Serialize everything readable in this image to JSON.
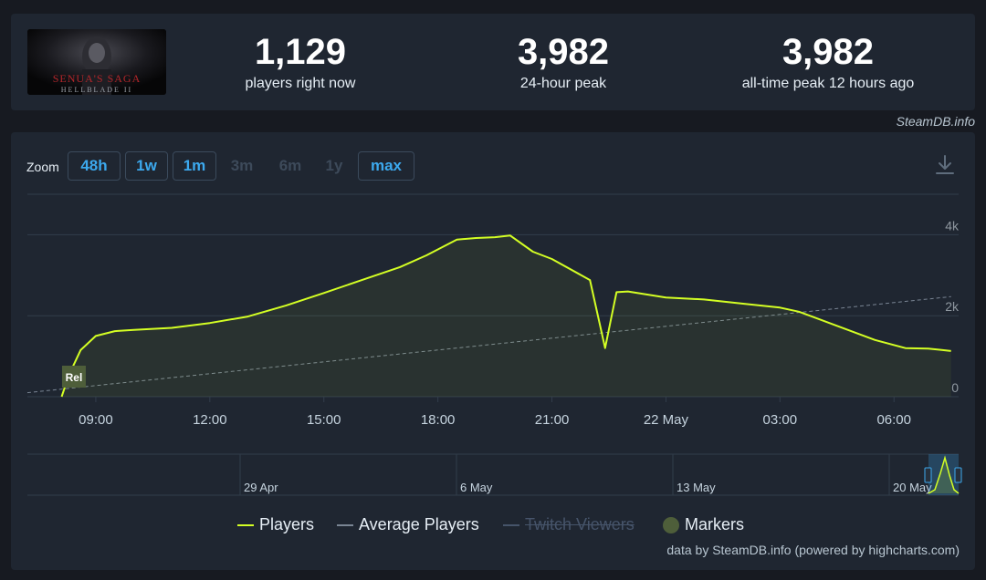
{
  "stats": {
    "players_now": {
      "value": "1,129",
      "label": "players right now"
    },
    "peak_24h": {
      "value": "3,982",
      "label": "24-hour peak"
    },
    "peak_all_time": {
      "value": "3,982",
      "label": "all-time peak 12 hours ago"
    }
  },
  "game_logo": {
    "line1": "SENUA'S SAGA",
    "line2": "HELLBLADE II"
  },
  "credit_top": "SteamDB.info",
  "zoom": {
    "label": "Zoom",
    "buttons": [
      {
        "label": "48h",
        "enabled": true
      },
      {
        "label": "1w",
        "enabled": true
      },
      {
        "label": "1m",
        "enabled": true
      },
      {
        "label": "3m",
        "enabled": false
      },
      {
        "label": "6m",
        "enabled": false
      },
      {
        "label": "1y",
        "enabled": false
      },
      {
        "label": "max",
        "enabled": true
      }
    ]
  },
  "download_icon": "download-icon",
  "legend": [
    {
      "name": "Players",
      "style": "line",
      "color": "#d4ff24",
      "enabled": true
    },
    {
      "name": "Average Players",
      "style": "dashed",
      "color": "#7a8594",
      "enabled": true
    },
    {
      "name": "Twitch Viewers",
      "style": "line",
      "color": "#46546a",
      "enabled": false
    },
    {
      "name": "Markers",
      "style": "dot",
      "color": "#4e5e3a",
      "enabled": true
    }
  ],
  "credit_bottom": "data by SteamDB.info (powered by highcharts.com)",
  "colors": {
    "players": "#d4ff24",
    "average": "#7a8594",
    "grid": "#323d4b",
    "accent": "#3ca9ee",
    "background": "#1f2631"
  },
  "chart_data": {
    "type": "line",
    "xunit": "hours since 21 May 00:00",
    "xlim": [
      7.2,
      31.7
    ],
    "ylim": [
      0,
      5000
    ],
    "y_ticks": [
      {
        "value": 0,
        "label": "0"
      },
      {
        "value": 2000,
        "label": "2k"
      },
      {
        "value": 4000,
        "label": "4k"
      }
    ],
    "x_ticks": [
      {
        "value": 9,
        "label": "09:00"
      },
      {
        "value": 12,
        "label": "12:00"
      },
      {
        "value": 15,
        "label": "15:00"
      },
      {
        "value": 18,
        "label": "18:00"
      },
      {
        "value": 21,
        "label": "21:00"
      },
      {
        "value": 24,
        "label": "22 May"
      },
      {
        "value": 27,
        "label": "03:00"
      },
      {
        "value": 30,
        "label": "06:00"
      }
    ],
    "series": [
      {
        "name": "Players",
        "x": [
          8.1,
          8.3,
          8.6,
          9.0,
          9.5,
          10.0,
          11.0,
          12.0,
          13.0,
          14.0,
          15.0,
          16.0,
          17.0,
          17.7,
          18.5,
          19.0,
          19.5,
          19.9,
          20.5,
          21.0,
          22.0,
          22.4,
          22.55,
          22.7,
          23.0,
          24.0,
          25.0,
          26.0,
          27.0,
          27.5,
          28.5,
          29.5,
          30.3,
          30.9,
          31.2,
          31.5
        ],
        "y": [
          0,
          550,
          1150,
          1500,
          1620,
          1650,
          1700,
          1820,
          1980,
          2250,
          2560,
          2880,
          3200,
          3490,
          3880,
          3920,
          3940,
          3982,
          3580,
          3400,
          2880,
          1200,
          1900,
          2580,
          2600,
          2450,
          2400,
          2300,
          2200,
          2100,
          1750,
          1400,
          1200,
          1190,
          1160,
          1129
        ]
      },
      {
        "name": "Average Players",
        "x": [
          7.2,
          31.5
        ],
        "y": [
          100,
          2470
        ]
      }
    ],
    "markers": [
      {
        "x": 8.4,
        "label": "Rel"
      }
    ],
    "navigator": {
      "labels": [
        "29 Apr",
        "6 May",
        "13 May",
        "20 May"
      ]
    },
    "grid": true,
    "legend_position": "bottom-center"
  }
}
